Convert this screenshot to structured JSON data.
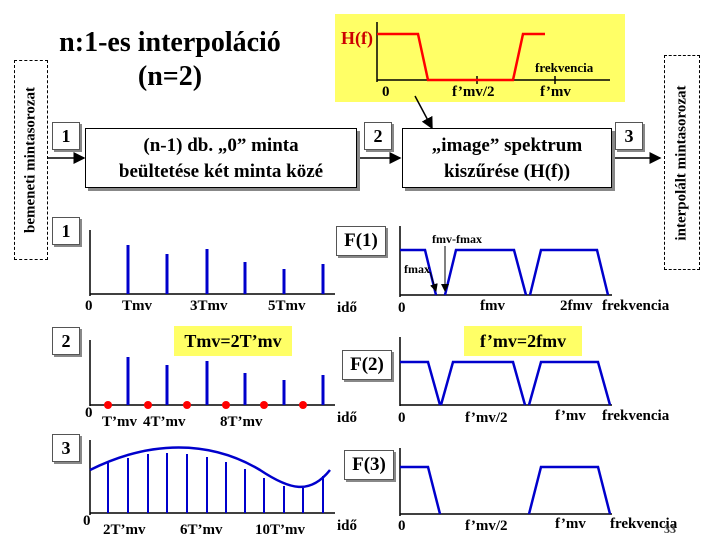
{
  "title": {
    "line1": "n:1-es interpoláció",
    "line2": "(n=2)"
  },
  "side_labels": {
    "input": "bemeneti mintasorozat",
    "output": "interpolált mintasorozat"
  },
  "block_numbers": [
    "1",
    "2",
    "3"
  ],
  "blocks": {
    "insert": {
      "line1": "(n-1) db. „0” minta",
      "line2": "beültetése két minta közé"
    },
    "filter": {
      "line1": "„image” spektrum",
      "line2": "kiszűrése (H(f))"
    }
  },
  "filter_panel": {
    "title": "H(f)",
    "axis": "frekvencia",
    "zero": "0",
    "tick1": "f’mv/2",
    "tick2": "f’mv"
  },
  "rows": [
    {
      "num": "1",
      "spectrum_label": "F(1)",
      "time_ticks": [
        "0",
        "Tmv",
        "3Tmv",
        "5Tmv",
        "idő"
      ],
      "freq_ticks": [
        "0",
        "fmv",
        "2fmv",
        "frekvencia"
      ],
      "annot1": "fmv-fmax",
      "annot2": "fmax"
    },
    {
      "num": "2",
      "spectrum_label": "F(2)",
      "time_ticks": [
        "0",
        "T’mv",
        "4T’mv",
        "8T’mv",
        "idő"
      ],
      "freq_ticks": [
        "0",
        "f’mv/2",
        "f’mv",
        "frekvencia"
      ],
      "note_time": "Tmv=2T’mv",
      "note_freq": "f’mv=2fmv"
    },
    {
      "num": "3",
      "spectrum_label": "F(3)",
      "time_ticks": [
        "0",
        "2T’mv",
        "6T’mv",
        "10T’mv",
        "idő"
      ],
      "freq_ticks": [
        "0",
        "f’mv/2",
        "f’mv",
        "frekvencia"
      ]
    }
  ],
  "page_number": "33",
  "colors": {
    "signal": "#0000cc",
    "filter": "#ff0000",
    "highlight": "#ffff66",
    "dots": "#ff0000"
  }
}
